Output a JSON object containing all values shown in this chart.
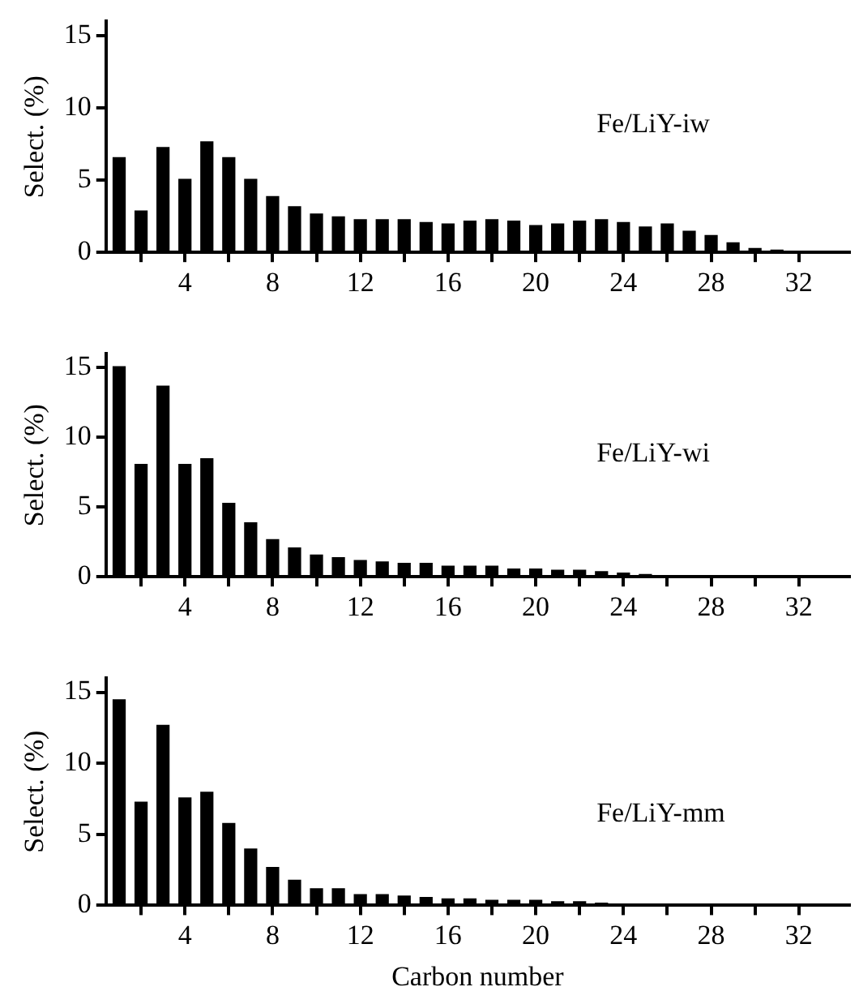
{
  "chart_data": [
    {
      "type": "bar",
      "ylabel": "Select. (%)",
      "annotations": [
        "Fe/LiY-iw"
      ],
      "color": "#000000",
      "x": [
        1,
        2,
        3,
        4,
        5,
        6,
        7,
        8,
        9,
        10,
        11,
        12,
        13,
        14,
        15,
        16,
        17,
        18,
        19,
        20,
        21,
        22,
        23,
        24,
        25,
        26,
        27,
        28,
        29,
        30,
        31,
        32,
        33
      ],
      "values": [
        6.6,
        2.9,
        7.3,
        5.1,
        7.7,
        6.6,
        5.1,
        3.9,
        3.2,
        2.7,
        2.5,
        2.3,
        2.3,
        2.3,
        2.1,
        2.0,
        2.2,
        2.3,
        2.2,
        1.9,
        2.0,
        2.2,
        2.3,
        2.1,
        1.8,
        2.0,
        1.5,
        1.2,
        0.7,
        0.3,
        0.2,
        0,
        0
      ],
      "xlim": [
        0.4,
        34.3
      ],
      "xticks": [
        {
          "value": 2,
          "label": null
        },
        4,
        {
          "value": 6,
          "label": null
        },
        8,
        {
          "value": 10,
          "label": null
        },
        12,
        {
          "value": 14,
          "label": null
        },
        16,
        {
          "value": 18,
          "label": null
        },
        20,
        {
          "value": 22,
          "label": null
        },
        24,
        {
          "value": 26,
          "label": null
        },
        28,
        {
          "value": 30,
          "label": null
        },
        32
      ],
      "ylim": [
        0,
        16
      ],
      "yticks": [
        0,
        5,
        10,
        15
      ]
    },
    {
      "type": "bar",
      "ylabel": "Select. (%)",
      "annotations": [
        "Fe/LiY-wi"
      ],
      "color": "#000000",
      "x": [
        1,
        2,
        3,
        4,
        5,
        6,
        7,
        8,
        9,
        10,
        11,
        12,
        13,
        14,
        15,
        16,
        17,
        18,
        19,
        20,
        21,
        22,
        23,
        24,
        25,
        26,
        27,
        28,
        29,
        30,
        31,
        32,
        33
      ],
      "values": [
        15.1,
        8.1,
        13.7,
        8.1,
        8.5,
        5.3,
        3.9,
        2.7,
        2.1,
        1.6,
        1.4,
        1.2,
        1.1,
        1.0,
        1.0,
        0.8,
        0.8,
        0.8,
        0.6,
        0.6,
        0.5,
        0.5,
        0.4,
        0.3,
        0.2,
        0.1,
        0.1,
        0,
        0,
        0,
        0,
        0,
        0
      ],
      "xlim": [
        0.4,
        34.3
      ],
      "xticks": [
        {
          "value": 2,
          "label": null
        },
        4,
        {
          "value": 6,
          "label": null
        },
        8,
        {
          "value": 10,
          "label": null
        },
        12,
        {
          "value": 14,
          "label": null
        },
        16,
        {
          "value": 18,
          "label": null
        },
        20,
        {
          "value": 22,
          "label": null
        },
        24,
        {
          "value": 26,
          "label": null
        },
        28,
        {
          "value": 30,
          "label": null
        },
        32
      ],
      "ylim": [
        0,
        16
      ],
      "yticks": [
        0,
        5,
        10,
        15
      ]
    },
    {
      "type": "bar",
      "ylabel": "Select. (%)",
      "xlabel": "Carbon number",
      "annotations": [
        "Fe/LiY-mm"
      ],
      "color": "#000000",
      "x": [
        1,
        2,
        3,
        4,
        5,
        6,
        7,
        8,
        9,
        10,
        11,
        12,
        13,
        14,
        15,
        16,
        17,
        18,
        19,
        20,
        21,
        22,
        23,
        24,
        25,
        26,
        27,
        28,
        29,
        30,
        31,
        32,
        33
      ],
      "values": [
        14.5,
        7.3,
        12.7,
        7.6,
        8.0,
        5.8,
        4.0,
        2.7,
        1.8,
        1.2,
        1.2,
        0.8,
        0.8,
        0.7,
        0.6,
        0.5,
        0.5,
        0.4,
        0.4,
        0.4,
        0.3,
        0.3,
        0.2,
        0.1,
        0,
        0,
        0,
        0,
        0,
        0,
        0,
        0,
        0
      ],
      "xlim": [
        0.4,
        34.3
      ],
      "xticks": [
        {
          "value": 2,
          "label": null
        },
        4,
        {
          "value": 6,
          "label": null
        },
        8,
        {
          "value": 10,
          "label": null
        },
        12,
        {
          "value": 14,
          "label": null
        },
        16,
        {
          "value": 18,
          "label": null
        },
        20,
        {
          "value": 22,
          "label": null
        },
        24,
        {
          "value": 26,
          "label": null
        },
        28,
        {
          "value": 30,
          "label": null
        },
        32
      ],
      "ylim": [
        0,
        16
      ],
      "yticks": [
        0,
        5,
        10,
        15
      ]
    }
  ]
}
